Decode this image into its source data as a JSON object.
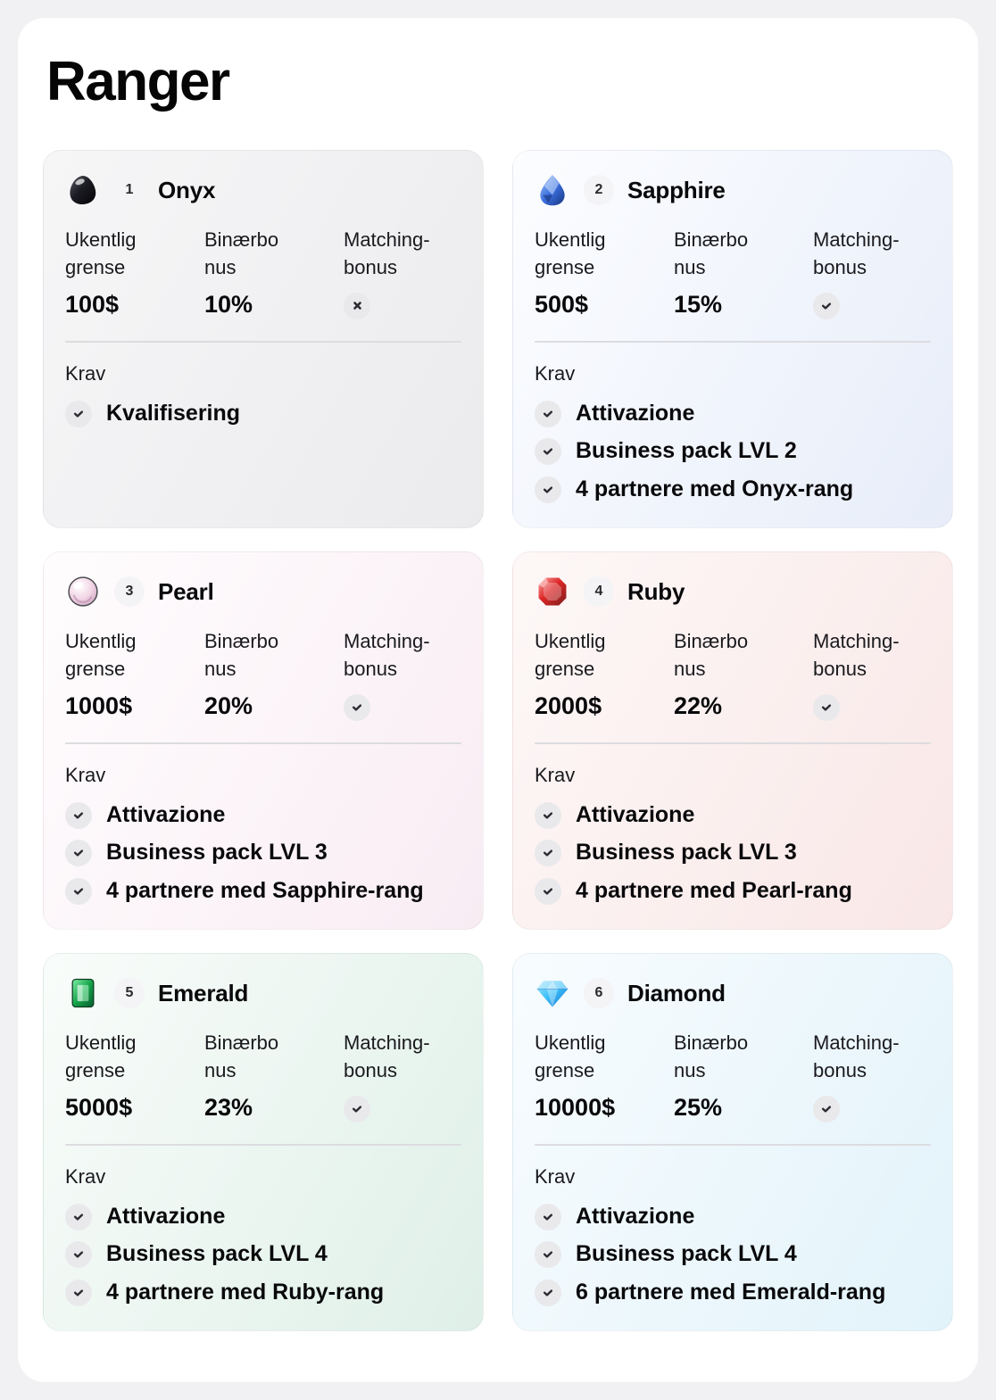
{
  "page": {
    "title": "Ranger"
  },
  "labels": {
    "weekly_cap": "Ukentlig grense",
    "binary_bonus": "Binærbonus",
    "matching_bonus": "Matching-bonus",
    "requirements": "Krav"
  },
  "cards": [
    {
      "number": "1",
      "name": "Onyx",
      "gem": "onyx",
      "icon": "onyx-gem-icon",
      "weekly_cap": "100$",
      "binary_bonus": "10%",
      "matching_bonus": false,
      "requirements": [
        "Kvalifisering"
      ],
      "colors": {
        "bg_from": "#f6f6f7",
        "bg_to": "#ebebee"
      }
    },
    {
      "number": "2",
      "name": "Sapphire",
      "gem": "sapphire",
      "icon": "sapphire-gem-icon",
      "weekly_cap": "500$",
      "binary_bonus": "15%",
      "matching_bonus": true,
      "requirements": [
        "Attivazione",
        "Business pack LVL 2",
        "4 partnere med Onyx-rang"
      ],
      "colors": {
        "bg_from": "#fcfdff",
        "bg_to": "#e7edf9"
      }
    },
    {
      "number": "3",
      "name": "Pearl",
      "gem": "pearl",
      "icon": "pearl-gem-icon",
      "weekly_cap": "1000$",
      "binary_bonus": "20%",
      "matching_bonus": true,
      "requirements": [
        "Attivazione",
        "Business pack LVL 3",
        "4 partnere med Sapphire-rang"
      ],
      "colors": {
        "bg_from": "#fffdfe",
        "bg_to": "#f8ecf3"
      }
    },
    {
      "number": "4",
      "name": "Ruby",
      "gem": "ruby",
      "icon": "ruby-gem-icon",
      "weekly_cap": "2000$",
      "binary_bonus": "22%",
      "matching_bonus": true,
      "requirements": [
        "Attivazione",
        "Business pack LVL 3",
        "4 partnere med Pearl-rang"
      ],
      "colors": {
        "bg_from": "#fdf8f7",
        "bg_to": "#f9e7e7"
      }
    },
    {
      "number": "5",
      "name": "Emerald",
      "gem": "emerald",
      "icon": "emerald-gem-icon",
      "weekly_cap": "5000$",
      "binary_bonus": "23%",
      "matching_bonus": true,
      "requirements": [
        "Attivazione",
        "Business pack LVL 4",
        "4 partnere med Ruby-rang"
      ],
      "colors": {
        "bg_from": "#f9fcfa",
        "bg_to": "#dff0e8"
      }
    },
    {
      "number": "6",
      "name": "Diamond",
      "gem": "diamond",
      "icon": "diamond-gem-icon",
      "weekly_cap": "10000$",
      "binary_bonus": "25%",
      "matching_bonus": true,
      "requirements": [
        "Attivazione",
        "Business pack LVL 4",
        "6 partnere med Emerald-rang"
      ],
      "colors": {
        "bg_from": "#f8fcfe",
        "bg_to": "#e2f3fa"
      }
    }
  ]
}
